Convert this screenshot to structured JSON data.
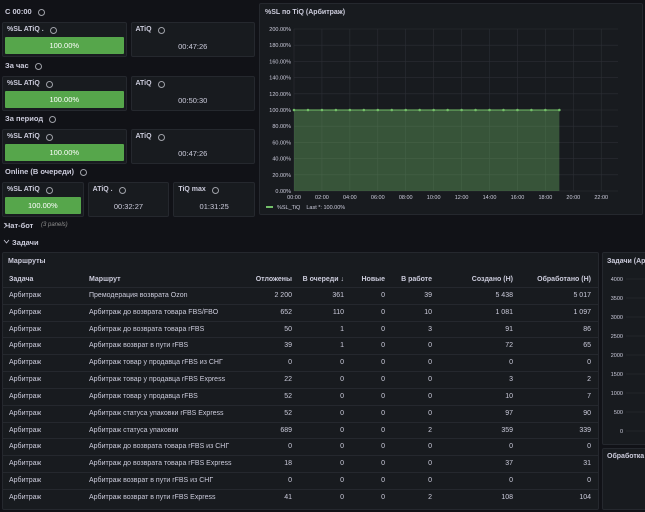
{
  "stat_rows": [
    {
      "title": "С 00:00",
      "panels": [
        {
          "title": "%SL ATiQ .",
          "value": "100.00%",
          "color": "#56a64b"
        },
        {
          "title": "ATiQ",
          "value": "00:47:26"
        }
      ]
    },
    {
      "title": "За час",
      "panels": [
        {
          "title": "%SL ATiQ",
          "value": "100.00%",
          "color": "#56a64b"
        },
        {
          "title": "ATiQ",
          "value": "00:50:30"
        }
      ]
    },
    {
      "title": "За период",
      "panels": [
        {
          "title": "%SL ATiQ",
          "value": "100.00%",
          "color": "#56a64b"
        },
        {
          "title": "ATiQ",
          "value": "00:47:26"
        }
      ]
    },
    {
      "title": "Online (В очереди)",
      "panels": [
        {
          "title": "%SL ATiQ",
          "value": "100.00%",
          "color": "#56a64b"
        },
        {
          "title": "ATiQ .",
          "value": "00:32:27"
        },
        {
          "title": "TiQ max",
          "value": "01:31:25"
        }
      ]
    }
  ],
  "chart_data": {
    "type": "line",
    "title": "%SL по TiQ (Арбитраж)",
    "x": [
      0,
      1,
      2,
      3,
      4,
      5,
      6,
      7,
      8,
      9,
      10,
      11,
      12,
      13,
      14,
      15,
      16,
      17,
      18,
      19
    ],
    "series": [
      {
        "name": "%SL_TiQ",
        "color": "#73bf69",
        "values": [
          100,
          100,
          100,
          100,
          100,
          100,
          100,
          100,
          100,
          100,
          100,
          100,
          100,
          100,
          100,
          100,
          100,
          100,
          100,
          100
        ]
      }
    ],
    "legend_stat": "Last *: 100.00%",
    "xlim": [
      0,
      23.2
    ],
    "xticks": [
      {
        "value": 0,
        "label": "00:00"
      },
      {
        "value": 2,
        "label": "02:00"
      },
      {
        "value": 4,
        "label": "04:00"
      },
      {
        "value": 6,
        "label": "06:00"
      },
      {
        "value": 8,
        "label": "08:00"
      },
      {
        "value": 10,
        "label": "10:00"
      },
      {
        "value": 12,
        "label": "12:00"
      },
      {
        "value": 14,
        "label": "14:00"
      },
      {
        "value": 16,
        "label": "16:00"
      },
      {
        "value": 18,
        "label": "18:00"
      },
      {
        "value": 20,
        "label": "20:00"
      },
      {
        "value": 22,
        "label": "22:00"
      }
    ],
    "ylim": [
      0,
      200
    ],
    "yticks": [
      {
        "value": 0,
        "label": "0.00%"
      },
      {
        "value": 20,
        "label": "20.00%"
      },
      {
        "value": 40,
        "label": "40.00%"
      },
      {
        "value": 60,
        "label": "60.00%"
      },
      {
        "value": 80,
        "label": "80.00%"
      },
      {
        "value": 100,
        "label": "100.00%"
      },
      {
        "value": 120,
        "label": "120.00%"
      },
      {
        "value": 140,
        "label": "140.00%"
      },
      {
        "value": 160,
        "label": "160.00%"
      },
      {
        "value": 180,
        "label": "180.00%"
      },
      {
        "value": 200,
        "label": "200.00%"
      }
    ],
    "grid": true
  },
  "collapsed_row": {
    "title": "Чат-бот",
    "note": "(3 panels)"
  },
  "section": {
    "title": "Задачи"
  },
  "table": {
    "title": "Маршруты",
    "columns": [
      "Задача",
      "Маршрут",
      "Отложены",
      "В очереди ↓",
      "Новые",
      "В работе",
      "Создано (Н)",
      "Обработано (Н)"
    ],
    "rows": [
      [
        "Арбитраж",
        "Премодерация возврата Ozon",
        "2 200",
        "361",
        "0",
        "39",
        "5 438",
        "5 017"
      ],
      [
        "Арбитраж",
        "Арбитраж до возврата товара FBS/FBO",
        "652",
        "110",
        "0",
        "10",
        "1 081",
        "1 097"
      ],
      [
        "Арбитраж",
        "Арбитраж до возврата товара rFBS",
        "50",
        "1",
        "0",
        "3",
        "91",
        "86"
      ],
      [
        "Арбитраж",
        "Арбитраж возврат в пути rFBS",
        "39",
        "1",
        "0",
        "0",
        "72",
        "65"
      ],
      [
        "Арбитраж",
        "Арбитраж товар у продавца rFBS из СНГ",
        "0",
        "0",
        "0",
        "0",
        "0",
        "0"
      ],
      [
        "Арбитраж",
        "Арбитраж товар у продавца rFBS Express",
        "22",
        "0",
        "0",
        "0",
        "3",
        "2"
      ],
      [
        "Арбитраж",
        "Арбитраж товар у продавца rFBS",
        "52",
        "0",
        "0",
        "0",
        "10",
        "7"
      ],
      [
        "Арбитраж",
        "Арбитраж статуса упаковки rFBS Express",
        "52",
        "0",
        "0",
        "0",
        "97",
        "90"
      ],
      [
        "Арбитраж",
        "Арбитраж статуса упаковки",
        "689",
        "0",
        "0",
        "2",
        "359",
        "339"
      ],
      [
        "Арбитраж",
        "Арбитраж до возврата товара rFBS из СНГ",
        "0",
        "0",
        "0",
        "0",
        "0",
        "0"
      ],
      [
        "Арбитраж",
        "Арбитраж до возврата товара rFBS Express",
        "18",
        "0",
        "0",
        "0",
        "37",
        "31"
      ],
      [
        "Арбитраж",
        "Арбитраж возврат в пути rFBS из СНГ",
        "0",
        "0",
        "0",
        "0",
        "0",
        "0"
      ],
      [
        "Арбитраж",
        "Арбитраж возврат в пути rFBS Express",
        "41",
        "0",
        "0",
        "2",
        "108",
        "104"
      ]
    ]
  },
  "side_panel": {
    "title": "Задачи (Ар",
    "ylim": [
      0,
      4000
    ],
    "yticks": [
      4000,
      3500,
      3000,
      2500,
      2000,
      1500,
      1000,
      500,
      0
    ]
  },
  "bottom_panel": {
    "title": "Обработка"
  }
}
